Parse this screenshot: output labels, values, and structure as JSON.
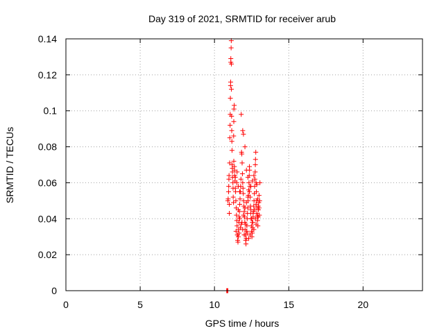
{
  "chart_data": {
    "type": "scatter",
    "title": "Day 319 of 2021, SRMTID for receiver arub",
    "xlabel": "GPS time / hours",
    "ylabel": "SRMTID / TECUs",
    "xlim": [
      0,
      24
    ],
    "ylim": [
      0,
      0.14
    ],
    "x_ticks": [
      0,
      5,
      10,
      15,
      20
    ],
    "x_tick_labels": [
      "0",
      "5",
      "10",
      "15",
      "20"
    ],
    "y_ticks": [
      0,
      0.02,
      0.04,
      0.06,
      0.08,
      0.1,
      0.12,
      0.14
    ],
    "y_tick_labels": [
      "0",
      "0.02",
      "0.04",
      "0.06",
      "0.08",
      "0.1",
      "0.12",
      "0.14"
    ],
    "grid": true,
    "marker": "+",
    "color": "#ff0000",
    "series": [
      {
        "name": "SRMTID",
        "points": [
          [
            10.82,
            0.0
          ],
          [
            10.84,
            0.0
          ],
          [
            10.86,
            0.0
          ],
          [
            10.88,
            0.0
          ],
          [
            10.9,
            0.0
          ],
          [
            10.9,
            0.05
          ],
          [
            10.92,
            0.051
          ],
          [
            10.95,
            0.055
          ],
          [
            10.96,
            0.058
          ],
          [
            10.97,
            0.062
          ],
          [
            10.98,
            0.064
          ],
          [
            11.0,
            0.048
          ],
          [
            11.0,
            0.043
          ],
          [
            11.02,
            0.071
          ],
          [
            11.03,
            0.085
          ],
          [
            11.05,
            0.092
          ],
          [
            11.06,
            0.098
          ],
          [
            11.07,
            0.107
          ],
          [
            11.08,
            0.114
          ],
          [
            11.09,
            0.116
          ],
          [
            11.1,
            0.127
          ],
          [
            11.1,
            0.129
          ],
          [
            11.12,
            0.135
          ],
          [
            11.13,
            0.139
          ],
          [
            11.14,
            0.126
          ],
          [
            11.14,
            0.112
          ],
          [
            11.15,
            0.097
          ],
          [
            11.16,
            0.089
          ],
          [
            11.17,
            0.083
          ],
          [
            11.18,
            0.078
          ],
          [
            11.19,
            0.07
          ],
          [
            11.2,
            0.068
          ],
          [
            11.21,
            0.066
          ],
          [
            11.22,
            0.063
          ],
          [
            11.24,
            0.06
          ],
          [
            11.25,
            0.057
          ],
          [
            11.26,
            0.052
          ],
          [
            11.28,
            0.049
          ],
          [
            11.29,
            0.086
          ],
          [
            11.3,
            0.094
          ],
          [
            11.31,
            0.101
          ],
          [
            11.33,
            0.103
          ],
          [
            11.34,
            0.069
          ],
          [
            11.35,
            0.067
          ],
          [
            11.36,
            0.064
          ],
          [
            11.38,
            0.061
          ],
          [
            11.4,
            0.057
          ],
          [
            11.42,
            0.055
          ],
          [
            11.44,
            0.05
          ],
          [
            11.46,
            0.046
          ],
          [
            11.48,
            0.042
          ],
          [
            11.5,
            0.039
          ],
          [
            11.52,
            0.036
          ],
          [
            11.54,
            0.031
          ],
          [
            11.56,
            0.028
          ],
          [
            11.58,
            0.027
          ],
          [
            11.6,
            0.03
          ],
          [
            11.62,
            0.034
          ],
          [
            11.64,
            0.038
          ],
          [
            11.66,
            0.041
          ],
          [
            11.68,
            0.044
          ],
          [
            11.7,
            0.048
          ],
          [
            11.72,
            0.051
          ],
          [
            11.74,
            0.055
          ],
          [
            11.76,
            0.058
          ],
          [
            11.78,
            0.062
          ],
          [
            11.8,
            0.098
          ],
          [
            11.82,
            0.077
          ],
          [
            11.84,
            0.076
          ],
          [
            11.86,
            0.071
          ],
          [
            11.88,
            0.065
          ],
          [
            11.9,
            0.06
          ],
          [
            11.92,
            0.057
          ],
          [
            11.94,
            0.054
          ],
          [
            11.96,
            0.05
          ],
          [
            11.98,
            0.047
          ],
          [
            12.0,
            0.044
          ],
          [
            12.02,
            0.041
          ],
          [
            12.04,
            0.038
          ],
          [
            12.06,
            0.034
          ],
          [
            12.08,
            0.031
          ],
          [
            12.1,
            0.028
          ],
          [
            12.12,
            0.026
          ],
          [
            12.14,
            0.029
          ],
          [
            12.16,
            0.033
          ],
          [
            12.18,
            0.036
          ],
          [
            12.2,
            0.04
          ],
          [
            12.22,
            0.043
          ],
          [
            12.24,
            0.046
          ],
          [
            12.26,
            0.05
          ],
          [
            12.28,
            0.053
          ],
          [
            12.3,
            0.056
          ],
          [
            12.32,
            0.06
          ],
          [
            12.34,
            0.064
          ],
          [
            12.36,
            0.067
          ],
          [
            12.38,
            0.058
          ],
          [
            12.4,
            0.052
          ],
          [
            12.42,
            0.047
          ],
          [
            12.44,
            0.043
          ],
          [
            12.46,
            0.04
          ],
          [
            12.48,
            0.036
          ],
          [
            12.5,
            0.033
          ],
          [
            12.52,
            0.03
          ],
          [
            12.54,
            0.032
          ],
          [
            12.56,
            0.035
          ],
          [
            12.58,
            0.038
          ],
          [
            12.6,
            0.041
          ],
          [
            12.62,
            0.044
          ],
          [
            12.64,
            0.047
          ],
          [
            12.66,
            0.05
          ],
          [
            12.68,
            0.054
          ],
          [
            12.7,
            0.058
          ],
          [
            12.72,
            0.062
          ],
          [
            12.74,
            0.066
          ],
          [
            12.76,
            0.073
          ],
          [
            12.78,
            0.077
          ],
          [
            12.8,
            0.06
          ],
          [
            12.82,
            0.055
          ],
          [
            12.84,
            0.05
          ],
          [
            12.86,
            0.046
          ],
          [
            12.88,
            0.042
          ],
          [
            12.9,
            0.039
          ],
          [
            12.92,
            0.036
          ],
          [
            12.94,
            0.041
          ],
          [
            12.96,
            0.045
          ],
          [
            12.98,
            0.049
          ],
          [
            13.0,
            0.046
          ],
          [
            13.02,
            0.042
          ],
          [
            13.04,
            0.05
          ],
          [
            13.06,
            0.06
          ],
          [
            11.52,
            0.066
          ],
          [
            11.6,
            0.058
          ],
          [
            11.7,
            0.055
          ],
          [
            11.9,
            0.089
          ],
          [
            11.95,
            0.087
          ],
          [
            12.05,
            0.08
          ],
          [
            12.15,
            0.067
          ],
          [
            12.25,
            0.063
          ],
          [
            12.35,
            0.069
          ],
          [
            12.45,
            0.045
          ],
          [
            12.55,
            0.038
          ],
          [
            12.65,
            0.034
          ],
          [
            12.75,
            0.04
          ],
          [
            12.85,
            0.043
          ],
          [
            12.95,
            0.047
          ],
          [
            11.45,
            0.033
          ],
          [
            11.55,
            0.031
          ],
          [
            11.65,
            0.032
          ],
          [
            11.75,
            0.035
          ],
          [
            11.85,
            0.038
          ],
          [
            11.95,
            0.042
          ],
          [
            12.05,
            0.046
          ],
          [
            12.15,
            0.049
          ],
          [
            12.25,
            0.052
          ],
          [
            12.35,
            0.055
          ],
          [
            12.45,
            0.058
          ],
          [
            12.55,
            0.061
          ],
          [
            12.65,
            0.064
          ],
          [
            12.75,
            0.07
          ],
          [
            12.85,
            0.059
          ],
          [
            11.3,
            0.072
          ],
          [
            11.4,
            0.063
          ],
          [
            11.5,
            0.06
          ],
          [
            11.6,
            0.045
          ],
          [
            11.7,
            0.04
          ],
          [
            11.8,
            0.037
          ],
          [
            11.9,
            0.034
          ],
          [
            12.0,
            0.031
          ],
          [
            12.1,
            0.037
          ],
          [
            12.2,
            0.032
          ],
          [
            12.3,
            0.029
          ],
          [
            12.4,
            0.031
          ],
          [
            12.5,
            0.04
          ],
          [
            12.6,
            0.043
          ],
          [
            12.7,
            0.045
          ],
          [
            12.8,
            0.048
          ],
          [
            12.9,
            0.051
          ],
          [
            13.0,
            0.053
          ],
          [
            12.9,
            0.041
          ],
          [
            12.8,
            0.037
          ]
        ]
      }
    ]
  }
}
